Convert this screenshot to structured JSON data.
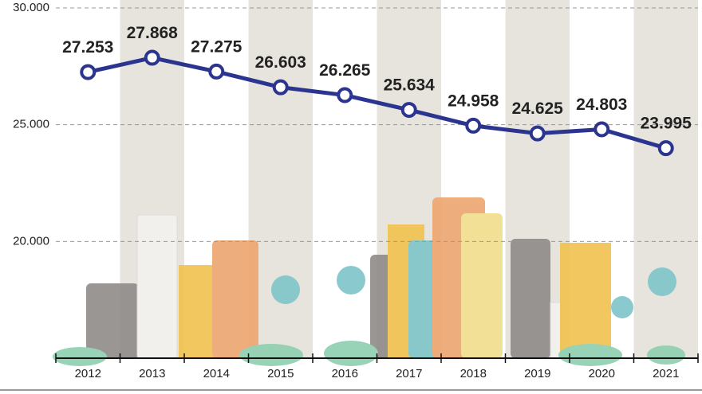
{
  "chart_data": {
    "type": "line",
    "categories": [
      "2012",
      "2013",
      "2014",
      "2015",
      "2016",
      "2017",
      "2018",
      "2019",
      "2020",
      "2021"
    ],
    "series": [
      {
        "color": "#2b3590",
        "values": [
          27253,
          27868,
          27275,
          26603,
          26265,
          25634,
          24958,
          24625,
          24803,
          23995
        ],
        "value_labels": [
          "27.253",
          "27.868",
          "27.275",
          "26.603",
          "26.265",
          "25.634",
          "24.958",
          "24.625",
          "24.803",
          "23.995"
        ]
      }
    ],
    "ylim": [
      15000,
      30000
    ],
    "yticks": [
      {
        "value": 20000,
        "label": "20.000"
      },
      {
        "value": 25000,
        "label": "25.000"
      },
      {
        "value": 30000,
        "label": "30.000"
      }
    ],
    "grid": true
  }
}
